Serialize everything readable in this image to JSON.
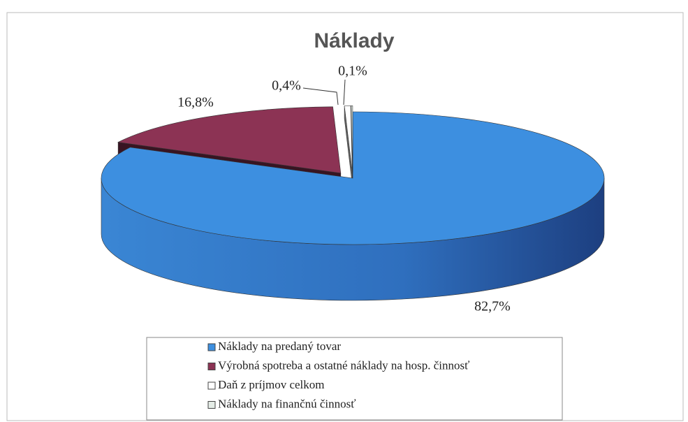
{
  "chart_data": {
    "type": "pie3d",
    "title": "Náklady",
    "categories": [
      "Náklady na predaný tovar",
      "Výrobná spotreba a ostatné náklady na hosp. činnosť",
      "Daň z príjmov celkom",
      "Náklady na finančnú činnosť"
    ],
    "values": [
      82.7,
      16.8,
      0.4,
      0.1
    ],
    "value_labels": [
      "82,7%",
      "16,8%",
      "0,4%",
      "0,1%"
    ],
    "colors": [
      "#3d8fe0",
      "#8c3354",
      "#ffffff",
      "#e4ece6"
    ],
    "legend": "bottom"
  }
}
